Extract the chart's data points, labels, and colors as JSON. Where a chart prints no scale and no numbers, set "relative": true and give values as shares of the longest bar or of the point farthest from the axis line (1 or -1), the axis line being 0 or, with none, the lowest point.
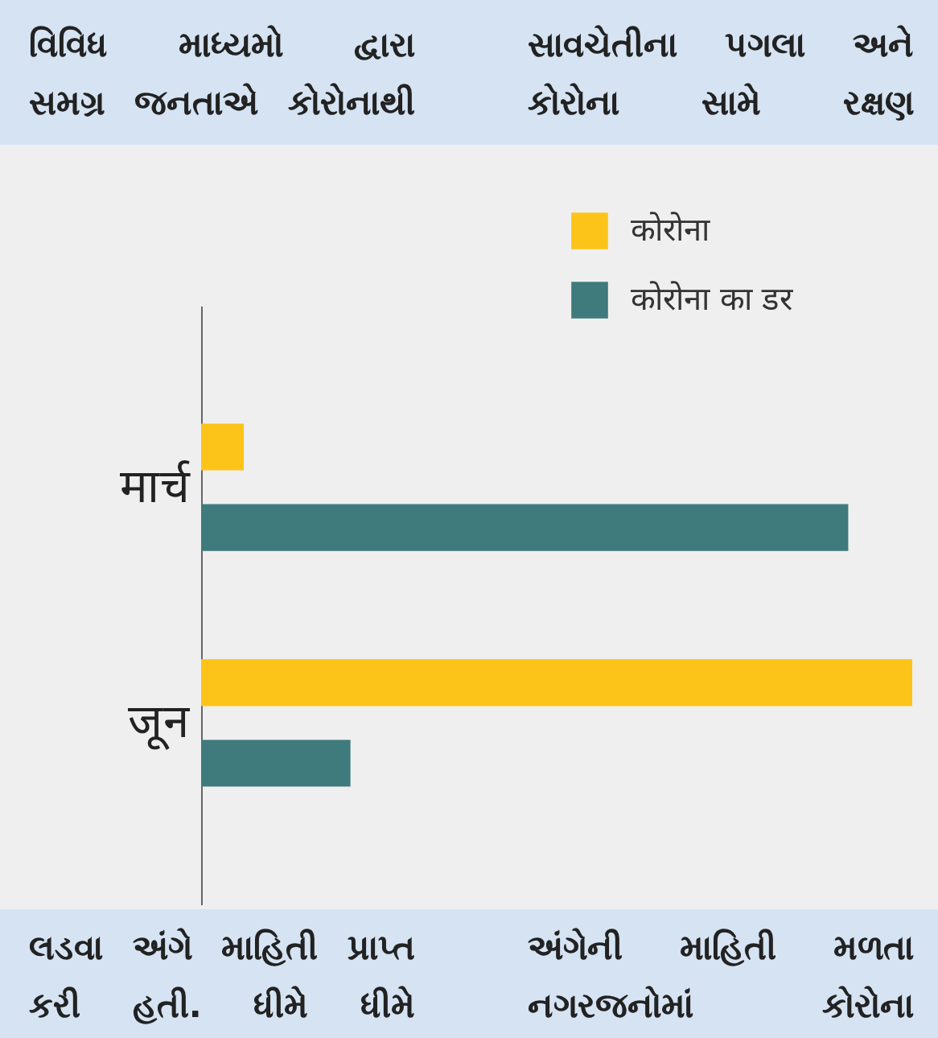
{
  "chart_data": {
    "type": "bar",
    "orientation": "horizontal",
    "relative": true,
    "categories": [
      "मार्च",
      "जून"
    ],
    "series": [
      {
        "name": "कोरोना",
        "color": "#fcc419",
        "values": [
          0.06,
          1
        ]
      },
      {
        "name": "कोरोना का डर",
        "color": "#3f7a7c",
        "values": [
          0.91,
          0.21
        ]
      }
    ],
    "legend": "top right",
    "annotations": [
      "વિવિધ માધ્યમો દ્વારા",
      "સમગ્ર જનતાએ કોરોનાથી",
      "સાવચેતીના પગલા અને",
      "કોરોના સામે રક્ષણ",
      "લડવા અંગે માહિતી પ્રાપ્ત",
      "કરી હતી. ધીમે ધીમે",
      "અંગેની માહિતી મળતા",
      "નગરજનોમાં કોરોના"
    ]
  }
}
